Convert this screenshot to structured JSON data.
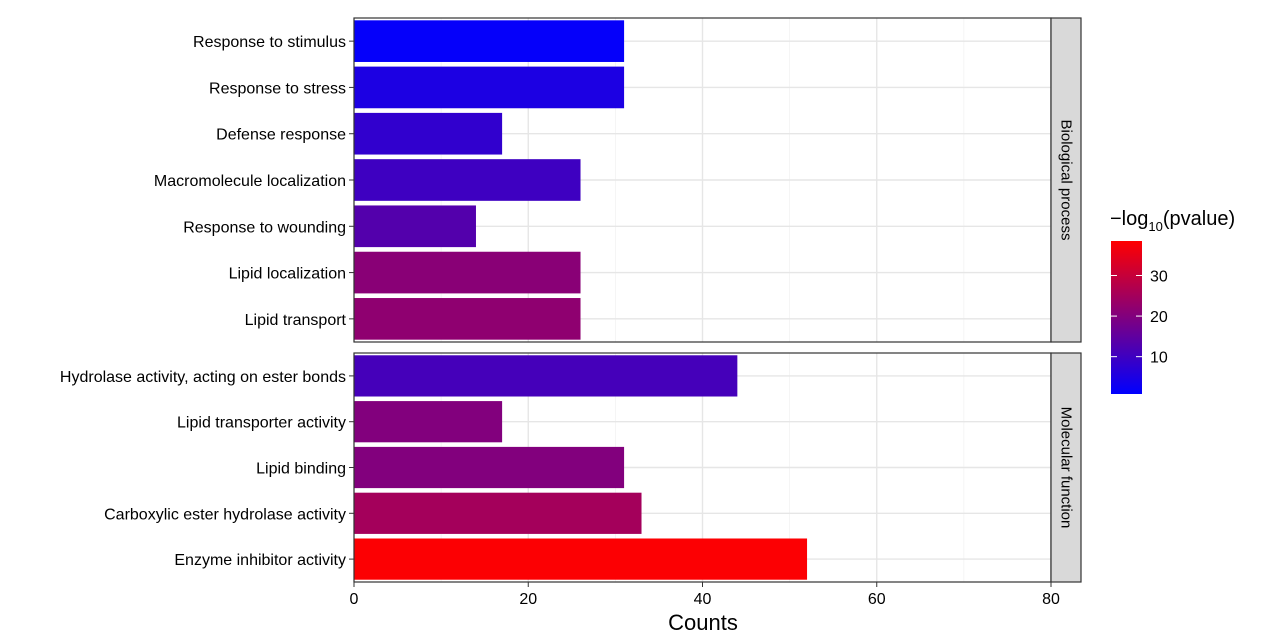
{
  "chart_data": {
    "type": "bar",
    "orientation": "horizontal",
    "xlabel": "Counts",
    "xlim": [
      0,
      80
    ],
    "x_ticks": [
      "0",
      "20",
      "40",
      "60",
      "80"
    ],
    "grid": true,
    "facets": [
      {
        "name": "Biological process",
        "categories": [
          "Response to stimulus",
          "Response to stress",
          "Defense response",
          "Macromolecule localization",
          "Response to wounding",
          "Lipid localization",
          "Lipid transport"
        ],
        "values": [
          31,
          31,
          17,
          26,
          14,
          26,
          26
        ],
        "color_values": [
          1.5,
          5,
          8,
          10,
          13,
          21,
          22
        ]
      },
      {
        "name": "Molecular function",
        "categories": [
          "Hydrolase activity, acting on ester bonds",
          "Lipid transporter activity",
          "Lipid binding",
          "Carboxylic ester hydrolase activity",
          "Enzyme inhibitor activity"
        ],
        "values": [
          44,
          17,
          31,
          33,
          52
        ],
        "color_values": [
          11,
          20,
          20,
          25,
          38
        ]
      }
    ],
    "legend": {
      "title_main": "−log",
      "title_sub": "10",
      "title_tail": "(pvalue)",
      "position": "right",
      "range": [
        0.8,
        38.5
      ],
      "ticks": [
        "10",
        "20",
        "30"
      ],
      "colors": {
        "low": "#0000ff",
        "high": "#ff0000"
      }
    }
  }
}
